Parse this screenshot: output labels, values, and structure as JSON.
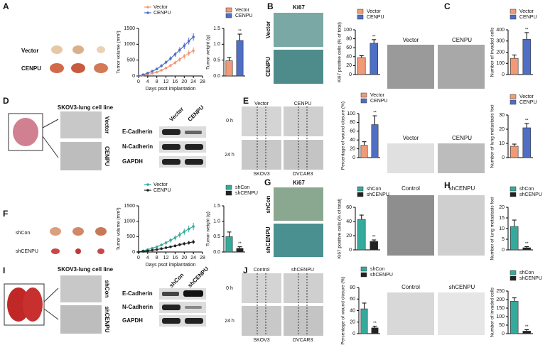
{
  "chart_data": [
    {
      "type": "line",
      "ylabel": "Tumor volume (mm³)",
      "xlabel": "Days psot implantation",
      "x": [
        0,
        2,
        4,
        6,
        8,
        10,
        12,
        14,
        16,
        18,
        20,
        22,
        24
      ],
      "xlim": [
        0,
        28
      ],
      "xticks": [
        0,
        4,
        8,
        12,
        16,
        20,
        24,
        28
      ],
      "ylim": [
        0,
        1500
      ],
      "yticks": [
        0,
        500,
        1000,
        1500
      ],
      "series": [
        {
          "name": "Vector",
          "color": "#f09a78",
          "values": [
            0,
            20,
            50,
            80,
            120,
            180,
            250,
            330,
            420,
            520,
            620,
            720,
            800
          ],
          "errors": [
            0,
            10,
            15,
            20,
            25,
            30,
            40,
            50,
            60,
            70,
            80,
            90,
            100
          ]
        },
        {
          "name": "CENPU",
          "color": "#4f6fc6",
          "values": [
            0,
            40,
            90,
            150,
            220,
            320,
            430,
            550,
            680,
            820,
            950,
            1100,
            1230
          ],
          "errors": [
            0,
            15,
            20,
            30,
            40,
            50,
            60,
            70,
            80,
            90,
            100,
            110,
            120
          ]
        }
      ]
    },
    {
      "type": "bar",
      "ylabel": "Tumor weight (g)",
      "ylim": [
        0,
        1.5
      ],
      "yticks": [
        {
          "value": 0,
          "label": "0.0"
        },
        0.5,
        {
          "value": 1,
          "label": "1.0"
        },
        1.5
      ],
      "series": [
        {
          "name": "Vector",
          "color": "#f09a78",
          "values": [
            0.48
          ],
          "errors": [
            0.1
          ]
        },
        {
          "name": "CENPU",
          "color": "#4f6fc6",
          "values": [
            1.12
          ],
          "errors": [
            0.2
          ],
          "significance": "**"
        }
      ]
    },
    {
      "type": "bar",
      "ylabel": "Ki67 positive cells (% of total)",
      "ylim": [
        0,
        100
      ],
      "yticks": [
        0,
        20,
        40,
        60,
        80,
        100
      ],
      "series": [
        {
          "name": "Vector",
          "color": "#f09a78",
          "values": [
            38
          ],
          "errors": [
            4
          ]
        },
        {
          "name": "CENPU",
          "color": "#4f6fc6",
          "values": [
            70
          ],
          "errors": [
            8
          ],
          "significance": "**"
        }
      ]
    },
    {
      "type": "bar",
      "ylabel": "Number of invaded cells",
      "ylim": [
        0,
        400
      ],
      "yticks": [
        0,
        100,
        200,
        300,
        400
      ],
      "series": [
        {
          "name": "Vector",
          "color": "#f09a78",
          "values": [
            145
          ],
          "errors": [
            30
          ]
        },
        {
          "name": "CENPU",
          "color": "#4f6fc6",
          "values": [
            315
          ],
          "errors": [
            60
          ],
          "significance": "**"
        }
      ]
    },
    {
      "type": "bar",
      "ylabel": "Percentage of wound closure (%)",
      "ylim": [
        0,
        100
      ],
      "yticks": [
        0,
        20,
        40,
        60,
        80,
        100
      ],
      "series": [
        {
          "name": "Vector",
          "color": "#f09a78",
          "values": [
            28
          ],
          "errors": [
            8
          ]
        },
        {
          "name": "CENPU",
          "color": "#4f6fc6",
          "values": [
            75
          ],
          "errors": [
            20
          ],
          "significance": "**"
        }
      ]
    },
    {
      "type": "bar",
      "ylabel": "Number of lung metastasis foci",
      "ylim": [
        0,
        30
      ],
      "yticks": [
        0,
        10,
        20,
        30
      ],
      "series": [
        {
          "name": "Vector",
          "color": "#f09a78",
          "values": [
            8
          ],
          "errors": [
            1.5
          ]
        },
        {
          "name": "CENPU",
          "color": "#4f6fc6",
          "values": [
            21
          ],
          "errors": [
            3
          ],
          "significance": "**"
        }
      ]
    },
    {
      "type": "line",
      "ylabel": "Tumor volume (mm³)",
      "xlabel": "Days psot implantation",
      "x": [
        0,
        2,
        4,
        6,
        8,
        10,
        12,
        14,
        16,
        18,
        20,
        22,
        24
      ],
      "xlim": [
        0,
        28
      ],
      "xticks": [
        0,
        4,
        8,
        12,
        16,
        20,
        24,
        28
      ],
      "ylim": [
        0,
        1500
      ],
      "yticks": [
        0,
        500,
        1000,
        1500
      ],
      "series": [
        {
          "name": "Vector",
          "color": "#35aa9c",
          "values": [
            0,
            40,
            80,
            120,
            170,
            230,
            300,
            380,
            460,
            560,
            660,
            750,
            830
          ],
          "errors": [
            0,
            20,
            25,
            30,
            40,
            50,
            60,
            70,
            80,
            90,
            100,
            110,
            120
          ]
        },
        {
          "name": "CENPU",
          "color": "#222222",
          "values": [
            0,
            20,
            40,
            60,
            80,
            110,
            140,
            170,
            200,
            240,
            270,
            300,
            330
          ],
          "errors": [
            0,
            10,
            15,
            20,
            25,
            30,
            35,
            40,
            45,
            50,
            55,
            60,
            70
          ]
        }
      ]
    },
    {
      "type": "bar",
      "ylabel": "Tumor weight (g)",
      "ylim": [
        0,
        1.5
      ],
      "yticks": [
        {
          "value": 0,
          "label": "0.0"
        },
        0.5,
        {
          "value": 1,
          "label": "1.0"
        },
        1.5
      ],
      "series": [
        {
          "name": "shCon",
          "color": "#35aa9c",
          "values": [
            0.5
          ],
          "errors": [
            0.15
          ]
        },
        {
          "name": "shCENPU",
          "color": "#222222",
          "values": [
            0.12
          ],
          "errors": [
            0.05
          ],
          "significance": "**"
        }
      ]
    },
    {
      "type": "bar",
      "ylabel": "Ki67 positive cells (% of total)",
      "ylim": [
        0,
        60
      ],
      "yticks": [
        0,
        20,
        40,
        60
      ],
      "series": [
        {
          "name": "shCon",
          "color": "#35aa9c",
          "values": [
            43
          ],
          "errors": [
            6
          ]
        },
        {
          "name": "shCENPU",
          "color": "#222222",
          "values": [
            12
          ],
          "errors": [
            2
          ],
          "significance": "**"
        }
      ]
    },
    {
      "type": "bar",
      "ylabel": "Number of lung metastasis foci",
      "ylim": [
        0,
        20
      ],
      "yticks": [
        0,
        5,
        10,
        15,
        20
      ],
      "series": [
        {
          "name": "shCon",
          "color": "#35aa9c",
          "values": [
            11
          ],
          "errors": [
            3
          ]
        },
        {
          "name": "shCENPU",
          "color": "#222222",
          "values": [
            1
          ],
          "errors": [
            0.5
          ],
          "significance": "**"
        }
      ]
    },
    {
      "type": "bar",
      "ylabel": "Percentage of wound closure (%)",
      "ylim": [
        0,
        80
      ],
      "yticks": [
        0,
        20,
        40,
        60,
        80
      ],
      "series": [
        {
          "name": "shCon",
          "color": "#35aa9c",
          "values": [
            43
          ],
          "errors": [
            10
          ]
        },
        {
          "name": "shCENPU",
          "color": "#222222",
          "values": [
            10
          ],
          "errors": [
            3
          ],
          "significance": "**"
        }
      ]
    },
    {
      "type": "bar",
      "ylabel": "Number of invaded cells",
      "ylim": [
        0,
        250
      ],
      "yticks": [
        0,
        50,
        100,
        150,
        200,
        250
      ],
      "series": [
        {
          "name": "shCon",
          "color": "#35aa9c",
          "values": [
            190
          ],
          "errors": [
            20
          ]
        },
        {
          "name": "shCENPU",
          "color": "#222222",
          "values": [
            15
          ],
          "errors": [
            8
          ],
          "significance": "**"
        }
      ]
    }
  ],
  "figure_text": {
    "panel_letters": [
      "A",
      "B",
      "C",
      "D",
      "E",
      "F",
      "G",
      "H",
      "I",
      "J"
    ],
    "A": {
      "rows": [
        "Vector",
        "CENPU"
      ]
    },
    "B": {
      "title": "Ki67",
      "rows": [
        "Vector",
        "CENPU"
      ]
    },
    "C": {
      "cols": [
        "Vector",
        "CENPU"
      ]
    },
    "D": {
      "title": "SKOV3-lung cell line",
      "rows": [
        "Vector",
        "CENPU"
      ],
      "blot_cols": [
        "Vector",
        "CENPU"
      ],
      "blot_rows": [
        "E-Cadherin",
        "N-Cadherin",
        "GAPDH"
      ]
    },
    "E": {
      "cols": [
        "Vector",
        "CENPU"
      ],
      "rows": [
        "0 h",
        "24 h"
      ],
      "cells": [
        "SKOV3",
        "OVCAR3"
      ]
    },
    "D_right": {
      "cols": [
        "Vector",
        "CENPU"
      ]
    },
    "F": {
      "rows": [
        "shCon",
        "shCENPU"
      ]
    },
    "G": {
      "title": "Ki67",
      "rows": [
        "shCon",
        "shCENPU"
      ]
    },
    "H": {
      "cols": [
        "Control",
        "shCENPU"
      ]
    },
    "I": {
      "title": "SKOV3-lung cell line",
      "rows": [
        "shCon",
        "shCENPU"
      ],
      "blot_cols": [
        "shCon",
        "shCENPU"
      ],
      "blot_rows": [
        "E-Cadherin",
        "N-Cadherin",
        "GAPDH"
      ]
    },
    "J": {
      "cols": [
        "Control",
        "shCENPU"
      ],
      "rows": [
        "0 h",
        "24 h"
      ],
      "cells": [
        "SKOV3",
        "OVCAR3"
      ]
    },
    "J_right": {
      "cols": [
        "Control",
        "shCENPU"
      ]
    }
  }
}
